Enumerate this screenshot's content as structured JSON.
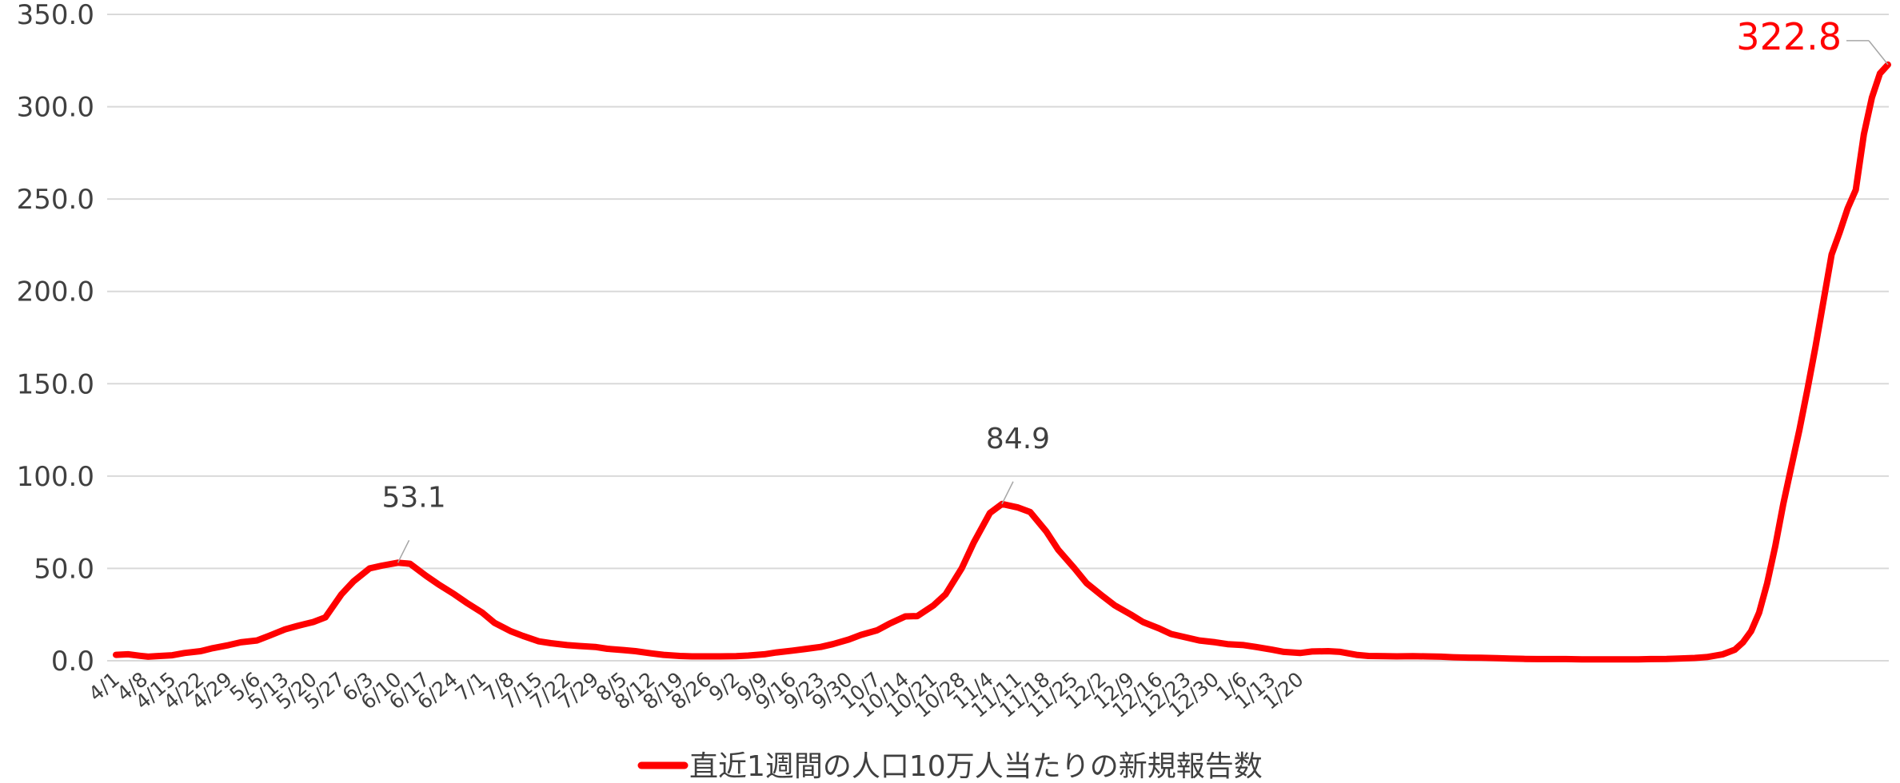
{
  "chart_data": {
    "type": "line",
    "title": "",
    "xlabel": "",
    "ylabel": "",
    "ylim": [
      0,
      350
    ],
    "y_ticks": [
      "0.0",
      "50.0",
      "100.0",
      "150.0",
      "200.0",
      "250.0",
      "300.0",
      "350.0"
    ],
    "x_ticks": [
      "4/1",
      "4/8",
      "4/15",
      "4/22",
      "4/29",
      "5/6",
      "5/13",
      "5/20",
      "5/27",
      "6/3",
      "6/10",
      "6/17",
      "6/24",
      "7/1",
      "7/8",
      "7/15",
      "7/22",
      "7/29",
      "8/5",
      "8/12",
      "8/19",
      "8/26",
      "9/2",
      "9/9",
      "9/16",
      "9/23",
      "9/30",
      "10/7",
      "10/14",
      "10/21",
      "10/28",
      "11/4",
      "11/11",
      "11/18",
      "11/25",
      "12/2",
      "12/9",
      "12/16",
      "12/23",
      "12/30",
      "1/6",
      "1/13",
      "1/20"
    ],
    "grid": true,
    "legend": "bottom",
    "series": [
      {
        "name": "直近1週間の人口10万人当たりの新規報告数",
        "color": "#ff0000",
        "keypoints": [
          [
            0,
            3.2
          ],
          [
            3,
            3.5
          ],
          [
            6,
            2.7
          ],
          [
            8,
            2.2
          ],
          [
            10,
            2.5
          ],
          [
            14,
            3.0
          ],
          [
            17,
            4.2
          ],
          [
            21,
            5.2
          ],
          [
            24,
            6.8
          ],
          [
            28,
            8.5
          ],
          [
            31,
            10.0
          ],
          [
            35,
            11.0
          ],
          [
            38,
            13.5
          ],
          [
            42,
            17.0
          ],
          [
            45,
            18.8
          ],
          [
            49,
            21.0
          ],
          [
            52,
            23.5
          ],
          [
            56,
            36.0
          ],
          [
            59,
            43.0
          ],
          [
            63,
            50.0
          ],
          [
            66,
            51.5
          ],
          [
            70,
            53.1
          ],
          [
            73,
            52.5
          ],
          [
            77,
            46.0
          ],
          [
            80,
            41.5
          ],
          [
            84,
            36.0
          ],
          [
            87,
            31.5
          ],
          [
            91,
            26.0
          ],
          [
            94,
            20.5
          ],
          [
            98,
            16.0
          ],
          [
            101,
            13.5
          ],
          [
            105,
            10.5
          ],
          [
            108,
            9.5
          ],
          [
            112,
            8.5
          ],
          [
            115,
            8.0
          ],
          [
            119,
            7.5
          ],
          [
            122,
            6.5
          ],
          [
            126,
            5.8
          ],
          [
            129,
            5.2
          ],
          [
            133,
            4.0
          ],
          [
            136,
            3.2
          ],
          [
            140,
            2.6
          ],
          [
            143,
            2.4
          ],
          [
            147,
            2.4
          ],
          [
            150,
            2.4
          ],
          [
            154,
            2.5
          ],
          [
            157,
            2.8
          ],
          [
            161,
            3.5
          ],
          [
            164,
            4.5
          ],
          [
            168,
            5.5
          ],
          [
            171,
            6.3
          ],
          [
            175,
            7.5
          ],
          [
            178,
            9.0
          ],
          [
            182,
            11.5
          ],
          [
            185,
            14.0
          ],
          [
            189,
            16.5
          ],
          [
            192,
            20.0
          ],
          [
            196,
            24.0
          ],
          [
            199,
            24.2
          ],
          [
            203,
            30.0
          ],
          [
            206,
            36.0
          ],
          [
            210,
            50.0
          ],
          [
            213,
            64.0
          ],
          [
            217,
            80.0
          ],
          [
            220,
            84.9
          ],
          [
            224,
            83.0
          ],
          [
            227,
            80.5
          ],
          [
            231,
            70.0
          ],
          [
            234,
            60.0
          ],
          [
            238,
            50.0
          ],
          [
            241,
            42.0
          ],
          [
            245,
            35.0
          ],
          [
            248,
            30.0
          ],
          [
            252,
            25.0
          ],
          [
            255,
            21.0
          ],
          [
            259,
            17.5
          ],
          [
            262,
            14.5
          ],
          [
            266,
            12.5
          ],
          [
            269,
            11.0
          ],
          [
            273,
            10.0
          ],
          [
            276,
            9.0
          ],
          [
            280,
            8.5
          ],
          [
            283,
            7.5
          ],
          [
            287,
            6.0
          ],
          [
            290,
            4.8
          ],
          [
            294,
            4.2
          ],
          [
            297,
            5.0
          ],
          [
            301,
            5.2
          ],
          [
            304,
            4.8
          ],
          [
            308,
            3.2
          ],
          [
            311,
            2.6
          ],
          [
            315,
            2.5
          ],
          [
            318,
            2.4
          ],
          [
            322,
            2.5
          ],
          [
            325,
            2.4
          ],
          [
            329,
            2.2
          ],
          [
            332,
            1.9
          ],
          [
            336,
            1.7
          ],
          [
            339,
            1.6
          ],
          [
            343,
            1.4
          ],
          [
            346,
            1.2
          ],
          [
            350,
            1.0
          ],
          [
            353,
            0.9
          ],
          [
            357,
            0.9
          ],
          [
            360,
            0.9
          ],
          [
            364,
            0.8
          ],
          [
            367,
            0.8
          ],
          [
            371,
            0.8
          ],
          [
            374,
            0.8
          ],
          [
            378,
            0.8
          ],
          [
            381,
            0.9
          ],
          [
            385,
            1.0
          ],
          [
            388,
            1.2
          ],
          [
            392,
            1.5
          ],
          [
            395,
            2.0
          ],
          [
            399,
            3.5
          ],
          [
            402,
            6.0
          ],
          [
            404,
            10.0
          ],
          [
            406,
            16.0
          ],
          [
            408,
            26.0
          ],
          [
            410,
            42.0
          ],
          [
            412,
            62.0
          ],
          [
            414,
            85.0
          ],
          [
            416,
            105.0
          ],
          [
            418,
            125.0
          ],
          [
            420,
            147.0
          ],
          [
            422,
            170.0
          ],
          [
            424,
            195.0
          ],
          [
            426,
            220.0
          ],
          [
            428,
            232.0
          ],
          [
            430,
            245.0
          ],
          [
            432,
            255.0
          ],
          [
            434,
            285.0
          ],
          [
            436,
            305.0
          ],
          [
            438,
            318.0
          ],
          [
            440,
            322.8
          ]
        ]
      }
    ],
    "annotations": [
      {
        "label": "53.1",
        "x": 70,
        "y": 53.1,
        "color": "#404040"
      },
      {
        "label": "84.9",
        "x": 220,
        "y": 84.9,
        "color": "#404040"
      },
      {
        "label": "322.8",
        "x": 440,
        "y": 322.8,
        "color": "#ff0000"
      }
    ]
  }
}
